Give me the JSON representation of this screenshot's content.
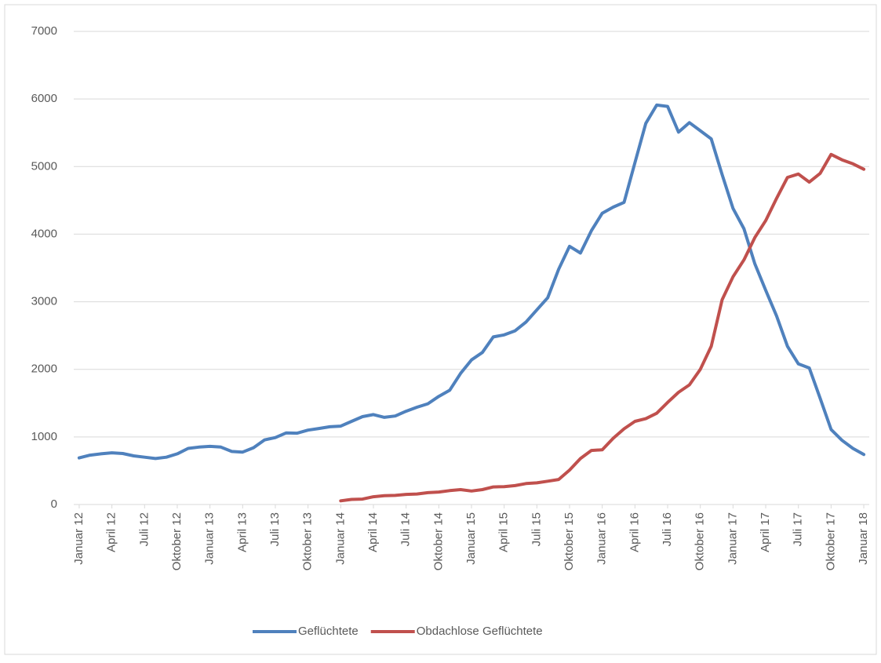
{
  "chart_data": {
    "type": "line",
    "categories": [
      "Januar 12",
      null,
      null,
      "April 12",
      null,
      null,
      "Juli 12",
      null,
      null,
      "Oktober 12",
      null,
      null,
      "Januar 13",
      null,
      null,
      "April 13",
      null,
      null,
      "Juli 13",
      null,
      null,
      "Oktober 13",
      null,
      null,
      "Januar 14",
      null,
      null,
      "April 14",
      null,
      null,
      "Juli 14",
      null,
      null,
      "Oktober 14",
      null,
      null,
      "Januar 15",
      null,
      null,
      "April 15",
      null,
      null,
      "Juli 15",
      null,
      null,
      "Oktober 15",
      null,
      null,
      "Januar 16",
      null,
      null,
      "April 16",
      null,
      null,
      "Juli 16",
      null,
      null,
      "Oktober 16",
      null,
      null,
      "Januar 17",
      null,
      null,
      "April 17",
      null,
      null,
      "Juli 17",
      null,
      null,
      "Oktober 17",
      null,
      null,
      "Januar 18"
    ],
    "series": [
      {
        "name": "Geflüchtete",
        "color": "#4f81bd",
        "values": [
          690,
          730,
          750,
          765,
          755,
          720,
          700,
          680,
          700,
          750,
          830,
          850,
          860,
          850,
          785,
          775,
          840,
          955,
          990,
          1060,
          1055,
          1100,
          1125,
          1150,
          1160,
          1230,
          1300,
          1330,
          1290,
          1310,
          1380,
          1440,
          1490,
          1600,
          1690,
          1940,
          2140,
          2250,
          2480,
          2510,
          2570,
          2700,
          2880,
          3060,
          3480,
          3820,
          3720,
          4050,
          4310,
          4400,
          4470,
          5060,
          5640,
          5910,
          5890,
          5510,
          5650,
          5530,
          5410,
          4880,
          4380,
          4080,
          3560,
          3170,
          2790,
          2340,
          2080,
          2020,
          1570,
          1110,
          950,
          830,
          740
        ]
      },
      {
        "name": "Obdachlose Geflüchtete",
        "color": "#c0504d",
        "values": [
          null,
          null,
          null,
          null,
          null,
          null,
          null,
          null,
          null,
          null,
          null,
          null,
          null,
          null,
          null,
          null,
          null,
          null,
          null,
          null,
          null,
          null,
          null,
          null,
          55,
          75,
          80,
          115,
          130,
          135,
          150,
          155,
          175,
          185,
          205,
          220,
          200,
          220,
          260,
          265,
          280,
          310,
          320,
          345,
          370,
          510,
          680,
          800,
          810,
          980,
          1120,
          1230,
          1270,
          1350,
          1510,
          1660,
          1770,
          2000,
          2340,
          3030,
          3370,
          3620,
          3950,
          4200,
          4530,
          4840,
          4890,
          4770,
          4900,
          5180,
          5100,
          5040,
          4960
        ]
      }
    ],
    "ylim": [
      0,
      7000
    ],
    "yticks": [
      0,
      1000,
      2000,
      3000,
      4000,
      5000,
      6000,
      7000
    ],
    "grid": true,
    "legend": "bottom"
  }
}
